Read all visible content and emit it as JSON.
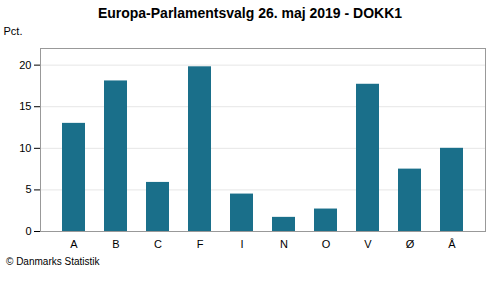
{
  "chart_data": {
    "type": "bar",
    "title": "Europa-Parlamentsvalg 26. maj 2019 - DOKK1",
    "categories": [
      "A",
      "B",
      "C",
      "F",
      "I",
      "N",
      "O",
      "V",
      "Ø",
      "Å"
    ],
    "values": [
      13.0,
      18.1,
      5.9,
      19.8,
      4.5,
      1.7,
      2.7,
      17.7,
      7.5,
      10.0
    ],
    "color": "#1a6f8a",
    "ylabel": "Pct.",
    "ylim": [
      0,
      22
    ],
    "yticks": [
      0,
      5,
      10,
      15,
      20
    ],
    "grid": true,
    "footer": "© Danmarks Statistik"
  }
}
